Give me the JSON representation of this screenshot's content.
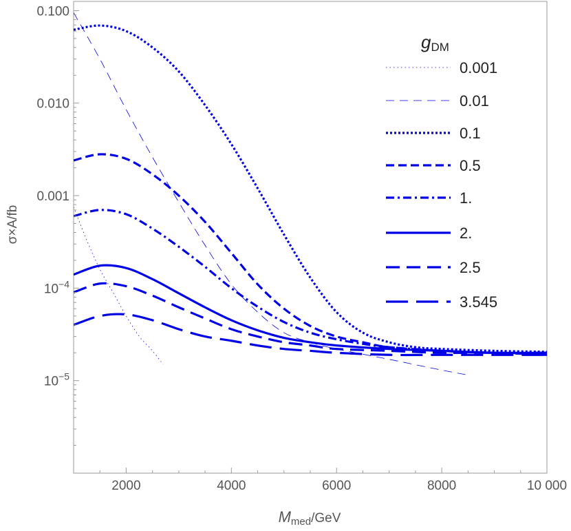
{
  "chart_data": {
    "type": "line",
    "title": "",
    "xlabel": {
      "main": "M",
      "sub": "med",
      "unit": "/GeV"
    },
    "ylabel": {
      "text": "σ×A/fb"
    },
    "xlim": [
      1000,
      10000
    ],
    "ylim_log10": [
      -6.0,
      -0.9
    ],
    "y_scale": "log",
    "x_ticks": [
      2000,
      4000,
      6000,
      8000,
      10000
    ],
    "x_tick_labels": [
      "2000",
      "4000",
      "6000",
      "8000",
      "10 000"
    ],
    "y_ticks_log10": [
      -1,
      -2,
      -3
    ],
    "y_tick_labels": [
      "0.100",
      "0.010",
      "0.001"
    ],
    "y_ticks_pow_log10": [
      -4,
      -5
    ],
    "y_tick_pow_base": "10",
    "y_tick_pow_exp": [
      "−4",
      "−5"
    ],
    "grid": false,
    "legend_placement": "top-right",
    "legend_title": {
      "main": "g",
      "sub": "DM"
    },
    "line_color": "#0000e6",
    "series": [
      {
        "name": "0.001",
        "style": "dotted-thin",
        "x": [
          1000,
          1250,
          1500,
          1750,
          2000,
          2250,
          2500,
          2700
        ],
        "y": [
          0.00075,
          0.00033,
          0.00016,
          9e-05,
          5e-05,
          3e-05,
          2.1e-05,
          1.5e-05
        ]
      },
      {
        "name": "0.01",
        "style": "dashed-thin",
        "x": [
          1000,
          1500,
          2000,
          2500,
          3000,
          3500,
          4000,
          4500,
          5000,
          5500,
          6000,
          7000,
          8000,
          8500
        ],
        "y": [
          0.095,
          0.03,
          0.0085,
          0.0026,
          0.00085,
          0.00029,
          0.00011,
          5.5e-05,
          3.3e-05,
          2.6e-05,
          2.2e-05,
          1.7e-05,
          1.3e-05,
          1.15e-05
        ]
      },
      {
        "name": "0.1",
        "style": "dotted-thick",
        "x": [
          1000,
          1500,
          2000,
          2500,
          3000,
          3500,
          4000,
          4500,
          5000,
          5500,
          6000,
          6500,
          7000,
          7500,
          8000,
          9000,
          10000
        ],
        "y": [
          0.062,
          0.069,
          0.06,
          0.04,
          0.022,
          0.0095,
          0.0036,
          0.0012,
          0.00038,
          0.00013,
          5.5e-05,
          3.3e-05,
          2.6e-05,
          2.3e-05,
          2.2e-05,
          2.1e-05,
          2.05e-05
        ]
      },
      {
        "name": "0.5",
        "style": "dashed-thick",
        "x": [
          1000,
          1500,
          2000,
          2500,
          3000,
          3500,
          4000,
          4500,
          5000,
          5500,
          6000,
          6500,
          7000,
          8000,
          9000,
          10000
        ],
        "y": [
          0.0024,
          0.0028,
          0.0025,
          0.0017,
          0.001,
          0.00052,
          0.00024,
          0.00011,
          6e-05,
          3.9e-05,
          3e-05,
          2.6e-05,
          2.3e-05,
          2.1e-05,
          2e-05,
          2e-05
        ]
      },
      {
        "name": "1.",
        "style": "dashdot-thick",
        "x": [
          1000,
          1500,
          2000,
          2500,
          3000,
          3500,
          4000,
          4500,
          5000,
          5500,
          6000,
          6500,
          7000,
          8000,
          9000,
          10000
        ],
        "y": [
          0.0006,
          0.0007,
          0.00063,
          0.00044,
          0.00028,
          0.00017,
          0.0001,
          6.3e-05,
          4.3e-05,
          3.3e-05,
          2.8e-05,
          2.5e-05,
          2.3e-05,
          2.1e-05,
          2e-05,
          2e-05
        ]
      },
      {
        "name": "2.",
        "style": "solid",
        "x": [
          1000,
          1500,
          2000,
          2500,
          3000,
          3500,
          4000,
          4500,
          5000,
          5500,
          6000,
          7000,
          8000,
          9000,
          10000
        ],
        "y": [
          0.00014,
          0.000175,
          0.000165,
          0.000125,
          8.8e-05,
          6.2e-05,
          4.5e-05,
          3.5e-05,
          2.9e-05,
          2.6e-05,
          2.4e-05,
          2.2e-05,
          2.1e-05,
          2e-05,
          2e-05
        ]
      },
      {
        "name": "2.5",
        "style": "longdash",
        "x": [
          1000,
          1500,
          2000,
          2500,
          3000,
          3500,
          4000,
          4500,
          5000,
          5500,
          6000,
          7000,
          8000,
          9000,
          10000
        ],
        "y": [
          9e-05,
          0.000112,
          0.000105,
          8.3e-05,
          6.2e-05,
          4.7e-05,
          3.6e-05,
          3e-05,
          2.6e-05,
          2.4e-05,
          2.2e-05,
          2.1e-05,
          2e-05,
          2e-05,
          1.9e-05
        ]
      },
      {
        "name": "3.545",
        "style": "verylongdash",
        "x": [
          1000,
          1500,
          2000,
          2500,
          3000,
          3500,
          4000,
          4500,
          5000,
          5500,
          6000,
          7000,
          8000,
          9000,
          10000
        ],
        "y": [
          4e-05,
          5e-05,
          5.2e-05,
          4.5e-05,
          3.6e-05,
          3e-05,
          2.7e-05,
          2.4e-05,
          2.2e-05,
          2.1e-05,
          2e-05,
          1.9e-05,
          1.9e-05,
          1.9e-05,
          1.9e-05
        ]
      }
    ]
  }
}
